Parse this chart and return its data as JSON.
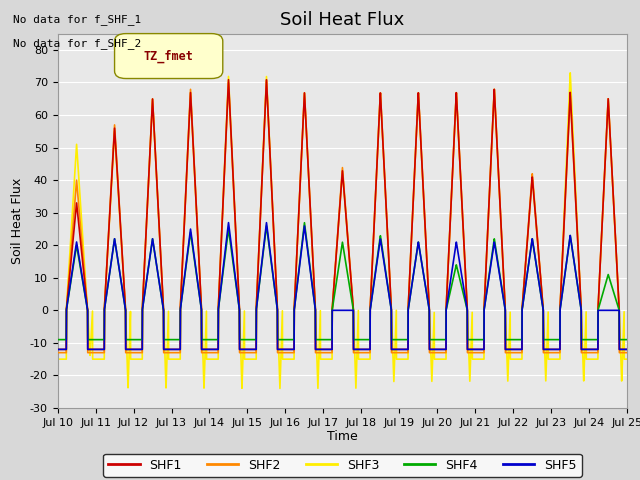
{
  "title": "Soil Heat Flux",
  "ylabel": "Soil Heat Flux",
  "xlabel": "Time",
  "ylim": [
    -30,
    85
  ],
  "yticks": [
    -30,
    -20,
    -10,
    0,
    10,
    20,
    30,
    40,
    50,
    60,
    70,
    80
  ],
  "line_colors": {
    "SHF1": "#cc0000",
    "SHF2": "#ff8800",
    "SHF3": "#ffee00",
    "SHF4": "#00aa00",
    "SHF5": "#0000cc"
  },
  "bg_color": "#d8d8d8",
  "axes_bg": "#e8e8e8",
  "text_annotations": [
    "No data for f_SHF_1",
    "No data for f_SHF_2"
  ],
  "tz_label": "TZ_fmet",
  "tz_box_color": "#ffffcc",
  "tz_text_color": "#880000",
  "grid_color": "#ffffff",
  "title_fontsize": 13,
  "label_fontsize": 9,
  "tick_fontsize": 8,
  "line_width": 1.2,
  "day_start": 10,
  "day_end": 25,
  "day_peaks_shf1": [
    33,
    56,
    65,
    67,
    71,
    71,
    67,
    43,
    67,
    67,
    67,
    68,
    41,
    67,
    65
  ],
  "day_peaks_shf2": [
    40,
    57,
    65,
    68,
    70,
    71,
    67,
    44,
    67,
    67,
    67,
    68,
    42,
    66,
    65
  ],
  "day_peaks_shf3": [
    51,
    55,
    65,
    67,
    72,
    72,
    67,
    43,
    67,
    67,
    67,
    68,
    41,
    73,
    65
  ],
  "day_peaks_shf4": [
    20,
    22,
    22,
    24,
    25,
    26,
    27,
    21,
    23,
    21,
    14,
    22,
    22,
    23,
    11
  ],
  "day_peaks_shf5": [
    21,
    22,
    22,
    25,
    27,
    27,
    26,
    0,
    22,
    21,
    21,
    21,
    22,
    23,
    0
  ],
  "night_shf1": -12,
  "night_shf2": -13,
  "night_shf3": -15,
  "night_shf4": -9,
  "night_shf5": -12,
  "night_deep_shf3": [
    -14,
    -24,
    -24,
    -24,
    -24,
    -24,
    -24,
    -24,
    -22,
    -22,
    -22,
    -22,
    -22,
    -22,
    -22
  ]
}
